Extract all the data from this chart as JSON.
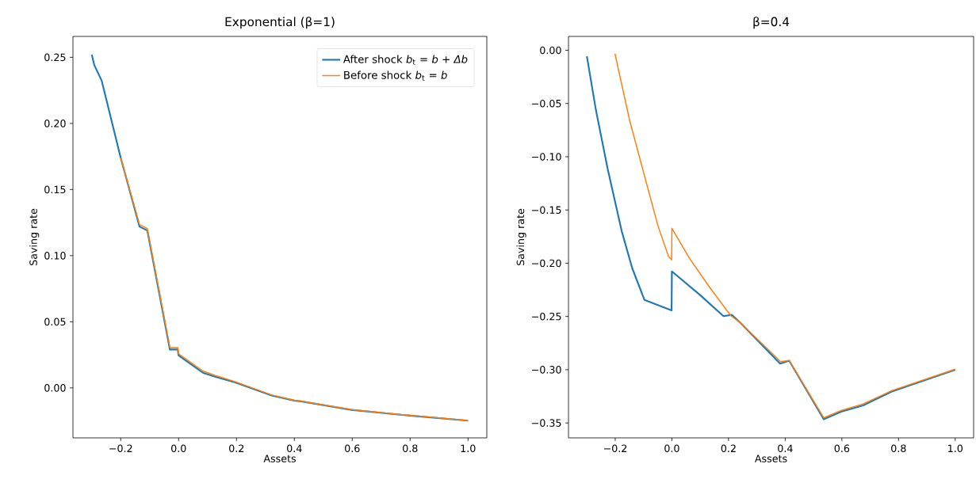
{
  "chart_data": [
    {
      "type": "line",
      "title": "Exponential (β=1)",
      "xlabel": "Assets",
      "ylabel": "Saving rate",
      "legend": "top right",
      "grid": false,
      "xlim": [
        -0.365,
        1.065
      ],
      "ylim": [
        -0.0378,
        0.2658
      ],
      "xticks": [
        {
          "value": -0.2,
          "label": "−0.2"
        },
        {
          "value": 0,
          "label": "0.0"
        },
        {
          "value": 0.2,
          "label": "0.2"
        },
        {
          "value": 0.4,
          "label": "0.4"
        },
        {
          "value": 0.6,
          "label": "0.6"
        },
        {
          "value": 0.8,
          "label": "0.8"
        },
        {
          "value": 1,
          "label": "1.0"
        }
      ],
      "yticks": [
        {
          "value": 0,
          "label": "0.00"
        },
        {
          "value": 0.05,
          "label": "0.05"
        },
        {
          "value": 0.1,
          "label": "0.10"
        },
        {
          "value": 0.15,
          "label": "0.15"
        },
        {
          "value": 0.2,
          "label": "0.20"
        },
        {
          "value": 0.25,
          "label": "0.25"
        }
      ],
      "series": [
        {
          "name": "After shock *b*$_{t}$ = *b* + *Δb*",
          "color": "#1f77b4",
          "x": [
            -0.3,
            -0.291,
            -0.266,
            -0.2,
            -0.135,
            -0.108,
            -0.03,
            -0.003,
            0.0,
            0.084,
            0.121,
            0.194,
            0.322,
            0.4,
            0.423,
            0.597,
            0.799,
            1.0
          ],
          "values": [
            0.252,
            0.244,
            0.2325,
            0.174,
            0.122,
            0.119,
            0.029,
            0.029,
            0.0245,
            0.0115,
            0.0088,
            0.0042,
            -0.0058,
            -0.0096,
            -0.0102,
            -0.0166,
            -0.021,
            -0.0248
          ]
        },
        {
          "name": "Before shock *b*$_{t}$ = *b*",
          "color": "#ff7f0e",
          "x": [
            -0.2,
            -0.135,
            -0.108,
            -0.03,
            -0.003,
            0.0,
            0.084,
            0.121,
            0.194,
            0.322,
            0.4,
            0.423,
            0.597,
            0.799,
            1.0
          ],
          "values": [
            0.174,
            0.1235,
            0.1205,
            0.0305,
            0.0305,
            0.0258,
            0.0128,
            0.0098,
            0.0048,
            -0.0054,
            -0.0094,
            -0.01,
            -0.0164,
            -0.0208,
            -0.0246
          ]
        }
      ]
    },
    {
      "type": "line",
      "title": "β=0.4",
      "xlabel": "Assets",
      "ylabel": "Saving rate",
      "grid": false,
      "xlim": [
        -0.365,
        1.065
      ],
      "ylim": [
        -0.364,
        0.013
      ],
      "xticks": [
        {
          "value": -0.2,
          "label": "−0.2"
        },
        {
          "value": 0,
          "label": "0.0"
        },
        {
          "value": 0.2,
          "label": "0.2"
        },
        {
          "value": 0.4,
          "label": "0.4"
        },
        {
          "value": 0.6,
          "label": "0.6"
        },
        {
          "value": 0.8,
          "label": "0.8"
        },
        {
          "value": 1,
          "label": "1.0"
        }
      ],
      "yticks": [
        {
          "value": -0.35,
          "label": "−0.35"
        },
        {
          "value": -0.3,
          "label": "−0.30"
        },
        {
          "value": -0.25,
          "label": "−0.25"
        },
        {
          "value": -0.2,
          "label": "−0.20"
        },
        {
          "value": -0.15,
          "label": "−0.15"
        },
        {
          "value": -0.1,
          "label": "−0.10"
        },
        {
          "value": -0.05,
          "label": "−0.05"
        },
        {
          "value": 0,
          "label": "0.00"
        }
      ],
      "series": [
        {
          "color": "#1f77b4",
          "x": [
            -0.3,
            -0.268,
            -0.227,
            -0.177,
            -0.14,
            -0.097,
            -0.001,
            0.0,
            0.098,
            0.182,
            0.212,
            0.245,
            0.382,
            0.414,
            0.536,
            0.597,
            0.675,
            0.776,
            1.0
          ],
          "values": [
            -0.0057,
            -0.0564,
            -0.111,
            -0.17,
            -0.2047,
            -0.2344,
            -0.2443,
            -0.2077,
            -0.2295,
            -0.2497,
            -0.2485,
            -0.2567,
            -0.2943,
            -0.2915,
            -0.3465,
            -0.3395,
            -0.3335,
            -0.3205,
            -0.3
          ]
        },
        {
          "color": "#ff7f0e",
          "x": [
            -0.201,
            -0.149,
            -0.094,
            -0.049,
            -0.012,
            -0.001,
            0.0,
            0.061,
            0.135,
            0.208,
            0.245,
            0.384,
            0.414,
            0.536,
            0.597,
            0.675,
            0.776,
            1.0
          ],
          "values": [
            -0.0032,
            -0.066,
            -0.1207,
            -0.165,
            -0.1936,
            -0.1968,
            -0.1672,
            -0.1949,
            -0.2233,
            -0.2493,
            -0.2567,
            -0.2925,
            -0.2913,
            -0.3452,
            -0.3383,
            -0.3321,
            -0.3197,
            -0.2995
          ]
        }
      ]
    }
  ]
}
